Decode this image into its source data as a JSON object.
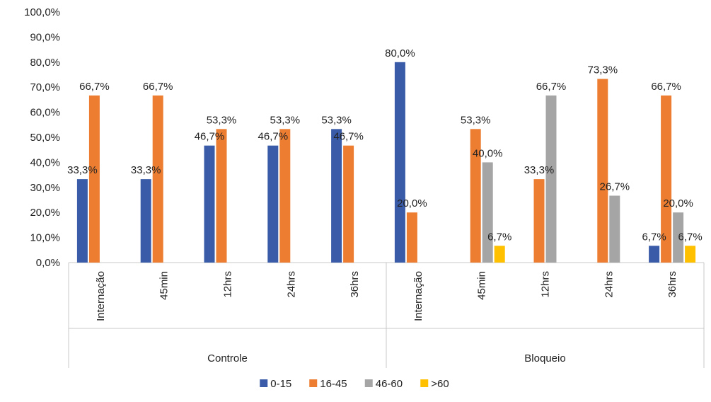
{
  "chart_data": {
    "type": "bar",
    "group_labels": [
      "Controle",
      "Bloqueio"
    ],
    "categories": [
      {
        "group": "Controle",
        "label": "Internação"
      },
      {
        "group": "Controle",
        "label": "45min"
      },
      {
        "group": "Controle",
        "label": "12hrs"
      },
      {
        "group": "Controle",
        "label": "24hrs"
      },
      {
        "group": "Controle",
        "label": "36hrs"
      },
      {
        "group": "Bloqueio",
        "label": "Internação"
      },
      {
        "group": "Bloqueio",
        "label": "45min"
      },
      {
        "group": "Bloqueio",
        "label": "12hrs"
      },
      {
        "group": "Bloqueio",
        "label": "24hrs"
      },
      {
        "group": "Bloqueio",
        "label": "36hrs"
      }
    ],
    "series": [
      {
        "name": "0-15",
        "color": "#3a5ba8",
        "values": [
          33.3,
          33.3,
          46.7,
          46.7,
          53.3,
          80.0,
          0,
          0,
          0,
          6.7
        ]
      },
      {
        "name": "16-45",
        "color": "#ed7d31",
        "values": [
          66.7,
          66.7,
          53.3,
          53.3,
          46.7,
          20.0,
          53.3,
          33.3,
          73.3,
          66.7
        ]
      },
      {
        "name": "46-60",
        "color": "#a5a5a5",
        "values": [
          0,
          0,
          0,
          0,
          0,
          0,
          40.0,
          66.7,
          26.7,
          20.0
        ]
      },
      {
        "name": ">60",
        "color": "#ffc000",
        "values": [
          0,
          0,
          0,
          0,
          0,
          0,
          6.7,
          0,
          0,
          6.7
        ]
      }
    ],
    "ylim": [
      0,
      100
    ],
    "yticks": [
      "0,0%",
      "10,0%",
      "20,0%",
      "30,0%",
      "40,0%",
      "50,0%",
      "60,0%",
      "70,0%",
      "80,0%",
      "90,0%",
      "100,0%"
    ],
    "data_labels": [
      [
        "33,3%",
        "66,7%",
        null,
        null
      ],
      [
        "33,3%",
        "66,7%",
        null,
        null
      ],
      [
        "46,7%",
        "53,3%",
        null,
        null
      ],
      [
        "46,7%",
        "53,3%",
        null,
        null
      ],
      [
        "53,3%",
        "46,7%",
        null,
        null
      ],
      [
        "80,0%",
        "20,0%",
        null,
        null
      ],
      [
        null,
        "53,3%",
        "40,0%",
        "6,7%"
      ],
      [
        null,
        "33,3%",
        "66,7%",
        null
      ],
      [
        null,
        "73,3%",
        "26,7%",
        null
      ],
      [
        "6,7%",
        "66,7%",
        "20,0%",
        "6,7%"
      ]
    ],
    "legend_position": "bottom",
    "grid": false
  }
}
